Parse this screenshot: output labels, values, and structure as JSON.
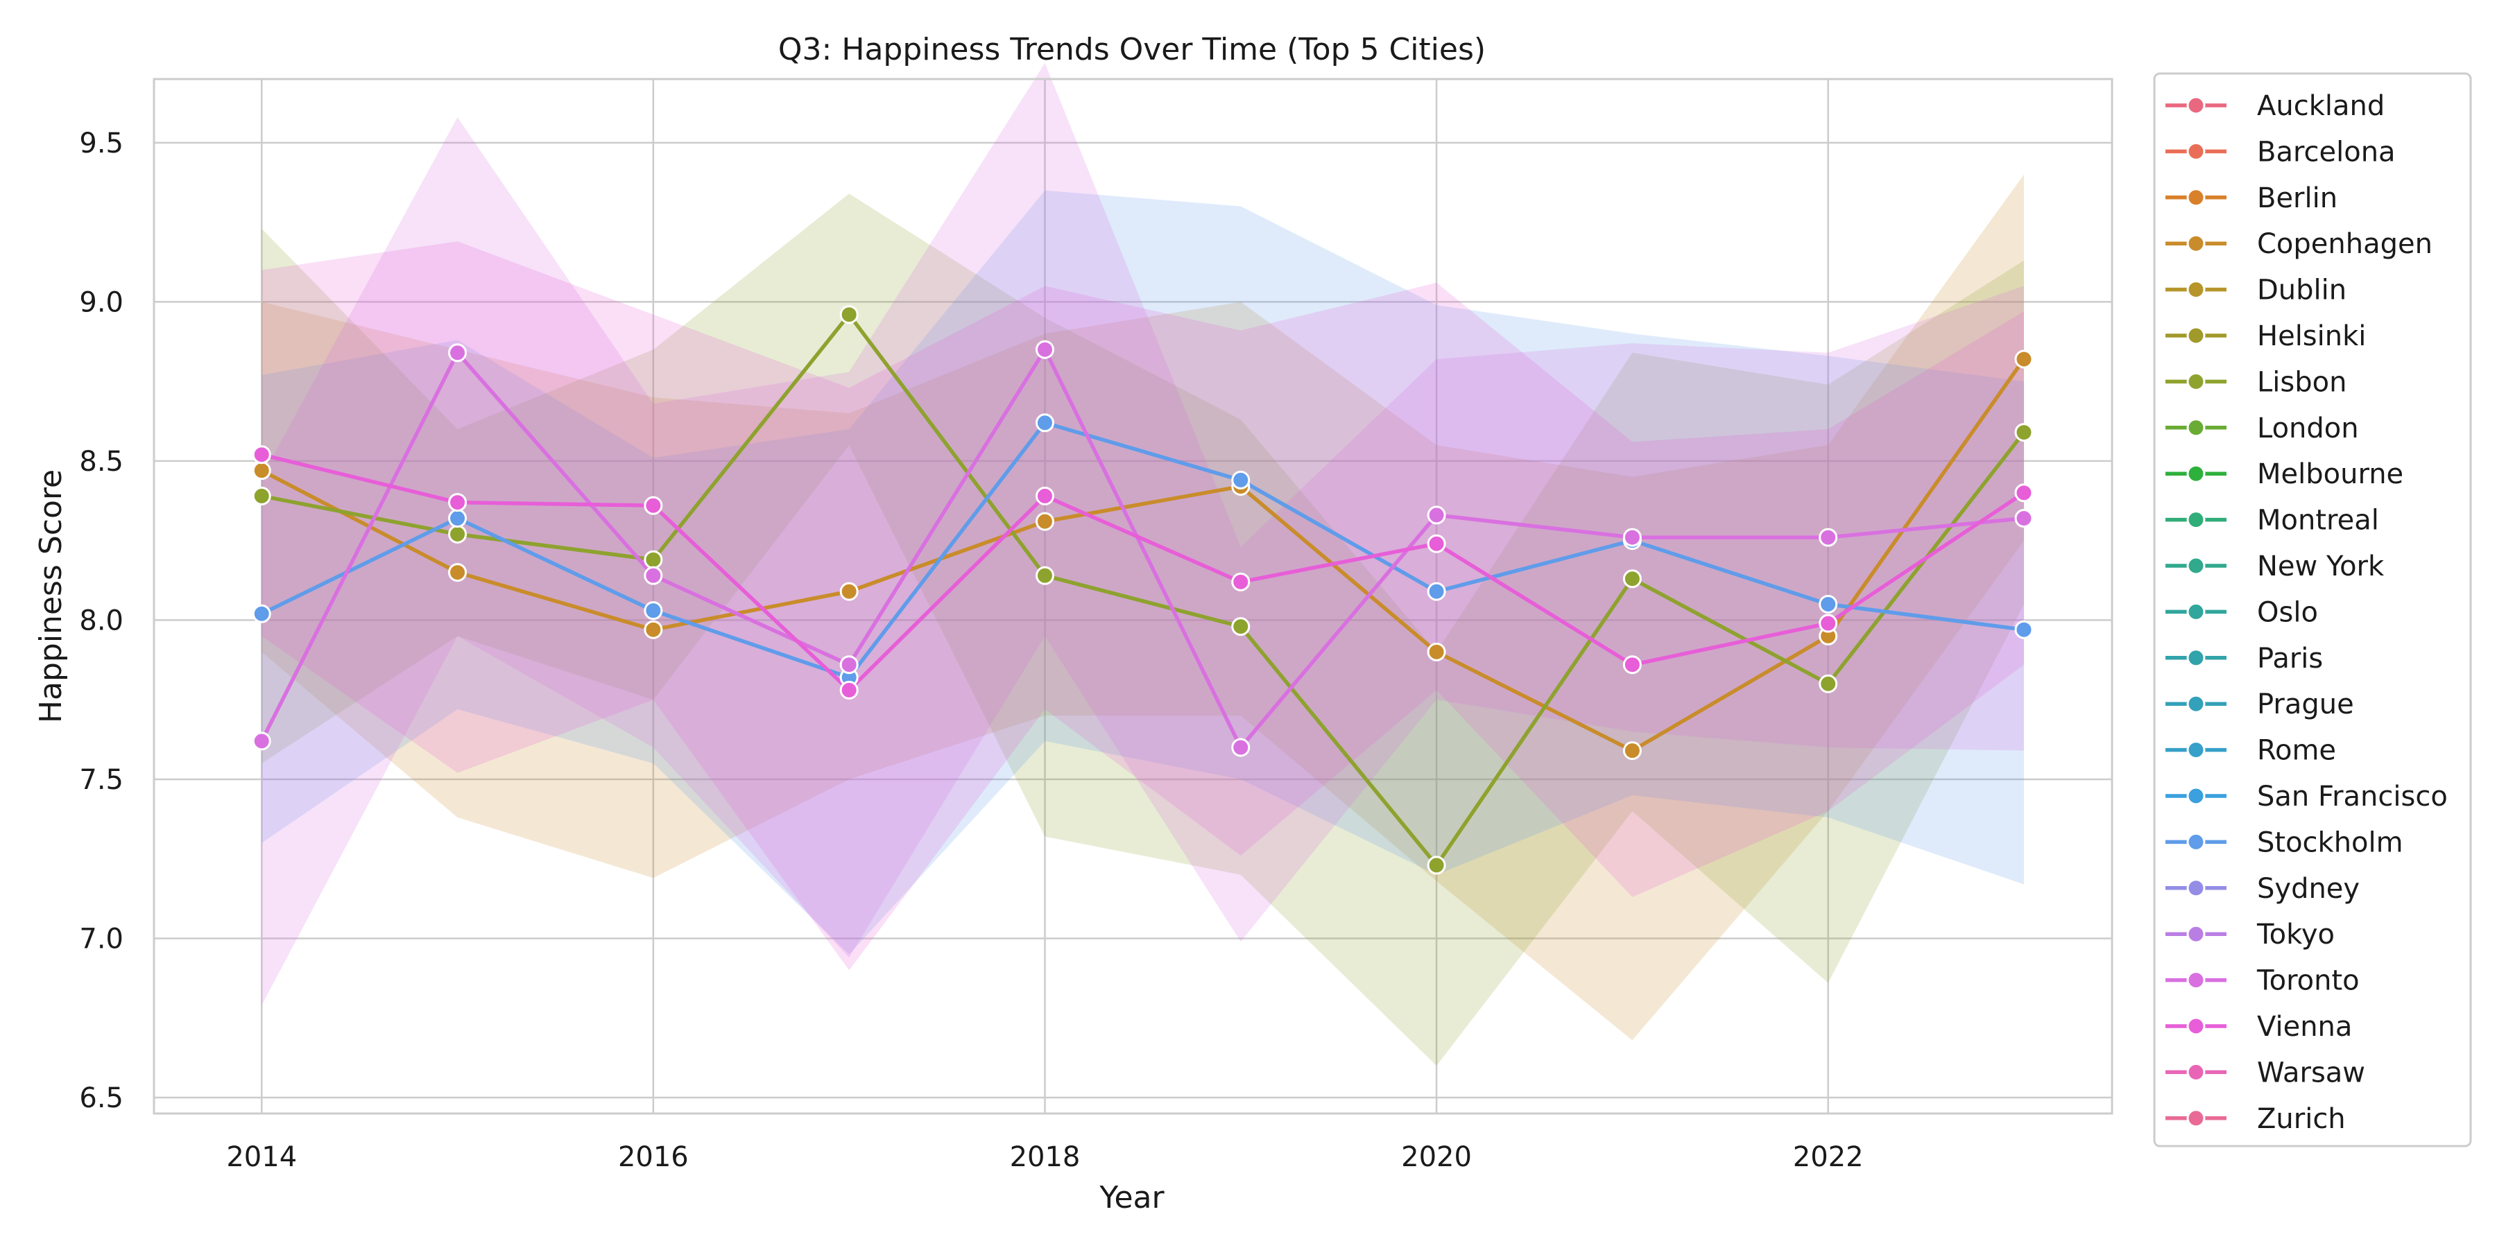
{
  "chart_data": {
    "type": "line",
    "title": "Q3: Happiness Trends Over Time (Top 5 Cities)",
    "xlabel": "Year",
    "ylabel": "Happiness Score",
    "xlim": [
      2013.45,
      2023.45
    ],
    "ylim": [
      6.45,
      9.7
    ],
    "x_ticks": [
      "2014",
      "2016",
      "2018",
      "2020",
      "2022"
    ],
    "y_ticks": [
      "6.5",
      "7.0",
      "7.5",
      "8.0",
      "8.5",
      "9.0",
      "9.5"
    ],
    "grid": true,
    "legend_position": "outside-right",
    "x": [
      2014,
      2015,
      2016,
      2017,
      2018,
      2019,
      2020,
      2021,
      2022,
      2023
    ],
    "legend": [
      {
        "name": "Auckland",
        "color": "#e9687f"
      },
      {
        "name": "Barcelona",
        "color": "#ea6e57"
      },
      {
        "name": "Berlin",
        "color": "#d9802a"
      },
      {
        "name": "Copenhagen",
        "color": "#c98c2a"
      },
      {
        "name": "Dublin",
        "color": "#b6952a"
      },
      {
        "name": "Helsinki",
        "color": "#a19a2a"
      },
      {
        "name": "Lisbon",
        "color": "#8ea22e"
      },
      {
        "name": "London",
        "color": "#6aab35"
      },
      {
        "name": "Melbourne",
        "color": "#2eb03c"
      },
      {
        "name": "Montreal",
        "color": "#30ad78"
      },
      {
        "name": "New York",
        "color": "#30a98d"
      },
      {
        "name": "Oslo",
        "color": "#30a69c"
      },
      {
        "name": "Paris",
        "color": "#31a3aa"
      },
      {
        "name": "Prague",
        "color": "#33a1b9"
      },
      {
        "name": "Rome",
        "color": "#36a0c9"
      },
      {
        "name": "San Francisco",
        "color": "#3aa0de"
      },
      {
        "name": "Stockholm",
        "color": "#5f9cea"
      },
      {
        "name": "Sydney",
        "color": "#938de6"
      },
      {
        "name": "Tokyo",
        "color": "#b97ee4"
      },
      {
        "name": "Toronto",
        "color": "#d970e0"
      },
      {
        "name": "Vienna",
        "color": "#e75ed8"
      },
      {
        "name": "Warsaw",
        "color": "#e865b6"
      },
      {
        "name": "Zurich",
        "color": "#e96a96"
      }
    ],
    "series": [
      {
        "name": "Copenhagen",
        "color": "#c98c2a",
        "values": [
          8.47,
          8.15,
          7.97,
          8.09,
          8.31,
          8.42,
          7.9,
          7.59,
          7.95,
          8.82
        ],
        "ci_low": [
          7.9,
          7.38,
          7.19,
          7.5,
          7.7,
          7.7,
          7.18,
          6.68,
          7.4,
          8.25
        ],
        "ci_high": [
          9.0,
          8.85,
          8.7,
          8.65,
          8.9,
          9.0,
          8.55,
          8.45,
          8.55,
          9.4
        ]
      },
      {
        "name": "Lisbon",
        "color": "#8ea22e",
        "values": [
          8.39,
          8.27,
          8.19,
          8.96,
          8.14,
          7.98,
          7.23,
          8.13,
          7.8,
          8.59
        ],
        "ci_low": [
          7.55,
          7.95,
          7.75,
          8.55,
          7.32,
          7.2,
          6.6,
          7.4,
          6.86,
          8.05
        ],
        "ci_high": [
          9.23,
          8.6,
          8.85,
          9.34,
          8.95,
          8.63,
          7.9,
          8.84,
          8.74,
          9.13
        ]
      },
      {
        "name": "Stockholm",
        "color": "#5f9cea",
        "values": [
          8.02,
          8.32,
          8.03,
          7.82,
          8.62,
          8.44,
          8.09,
          8.25,
          8.05,
          7.97
        ],
        "ci_low": [
          7.3,
          7.72,
          7.55,
          6.95,
          7.62,
          7.5,
          7.2,
          7.45,
          7.38,
          7.17
        ],
        "ci_high": [
          8.77,
          8.88,
          8.51,
          8.6,
          9.35,
          9.3,
          8.99,
          8.9,
          8.83,
          8.75
        ]
      },
      {
        "name": "Toronto",
        "color": "#d970e0",
        "values": [
          7.62,
          8.84,
          8.14,
          7.86,
          8.85,
          7.6,
          8.33,
          8.26,
          8.26,
          8.32
        ],
        "ci_low": [
          6.79,
          7.95,
          7.6,
          6.94,
          7.95,
          6.99,
          7.75,
          7.65,
          7.6,
          7.59
        ],
        "ci_high": [
          8.45,
          9.58,
          8.68,
          8.78,
          9.75,
          8.23,
          8.82,
          8.87,
          8.84,
          9.05
        ]
      },
      {
        "name": "Vienna",
        "color": "#e75ed8",
        "values": [
          8.52,
          8.37,
          8.36,
          7.78,
          8.39,
          8.12,
          8.24,
          7.86,
          7.99,
          8.4
        ],
        "ci_low": [
          7.95,
          7.52,
          7.75,
          6.9,
          7.72,
          7.26,
          7.78,
          7.13,
          7.4,
          7.86
        ],
        "ci_high": [
          9.1,
          9.19,
          8.96,
          8.73,
          9.05,
          8.91,
          9.06,
          8.56,
          8.6,
          8.97
        ]
      }
    ]
  }
}
